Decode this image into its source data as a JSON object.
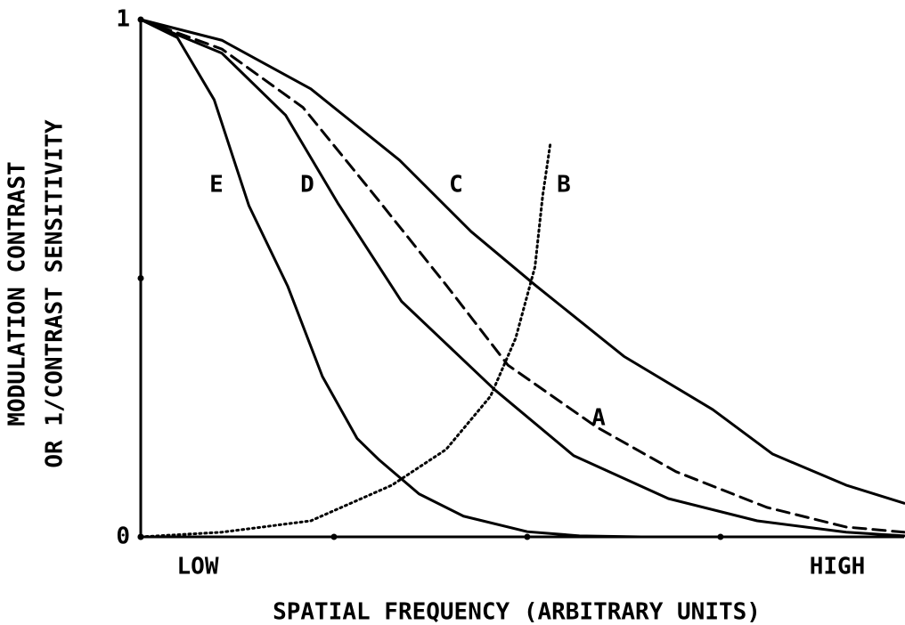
{
  "chart_data": {
    "type": "line",
    "ylabel": [
      "MODULATION CONTRAST",
      "OR 1/CONTRAST SENSITIVITY"
    ],
    "xlabel": "SPATIAL FREQUENCY (ARBITRARY UNITS)",
    "x_low_label": "LOW",
    "x_high_label": "HIGH",
    "xlim": [
      0,
      3.95
    ],
    "xticks": [
      0,
      1,
      2,
      3
    ],
    "ylim": [
      0,
      1
    ],
    "yticks": [
      0,
      {
        "value": 0.5,
        "label": null
      },
      1
    ],
    "series": [
      {
        "name": "E",
        "color": "#000000",
        "style": "solid",
        "x": [
          0,
          0.19,
          0.38,
          0.56,
          0.76,
          0.94,
          1.12,
          1.23,
          1.44,
          1.67,
          2.0,
          2.27,
          2.59
        ],
        "values": [
          1,
          0.965,
          0.845,
          0.64,
          0.485,
          0.31,
          0.19,
          0.15,
          0.083,
          0.04,
          0.01,
          0.002,
          0
        ]
      },
      {
        "name": "D",
        "color": "#000000",
        "style": "solid",
        "x": [
          0,
          0.42,
          0.75,
          1.02,
          1.35,
          1.83,
          2.24,
          2.73,
          3.19,
          3.65,
          3.95
        ],
        "values": [
          1,
          0.935,
          0.815,
          0.645,
          0.455,
          0.285,
          0.157,
          0.074,
          0.031,
          0.009,
          0.002
        ]
      },
      {
        "name": "C",
        "color": "#000000",
        "style": "solid",
        "x": [
          0,
          0.42,
          0.88,
          1.34,
          1.71,
          2.04,
          2.5,
          2.96,
          3.27,
          3.65,
          3.95
        ],
        "values": [
          1,
          0.96,
          0.866,
          0.728,
          0.59,
          0.487,
          0.349,
          0.246,
          0.16,
          0.1,
          0.065
        ]
      },
      {
        "name": "B",
        "color": "#000000",
        "style": "dotted",
        "x": [
          0,
          0.42,
          0.88,
          1.3,
          1.58,
          1.81,
          1.94,
          2.04,
          2.08,
          2.12
        ],
        "values": [
          0,
          0.009,
          0.031,
          0.1,
          0.169,
          0.272,
          0.384,
          0.522,
          0.66,
          0.762
        ]
      },
      {
        "name": "A",
        "color": "#000000",
        "style": "dashed",
        "x": [
          0,
          0.42,
          0.84,
          1.21,
          1.58,
          1.9,
          2.36,
          2.77,
          3.24,
          3.65,
          3.95
        ],
        "values": [
          1,
          0.943,
          0.83,
          0.66,
          0.487,
          0.332,
          0.212,
          0.126,
          0.057,
          0.019,
          0.009
        ]
      }
    ]
  }
}
